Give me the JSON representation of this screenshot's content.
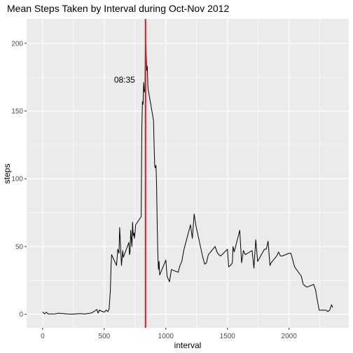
{
  "chart_data": {
    "type": "line",
    "title": "Mean Steps Taken by Interval during Oct-Nov 2012",
    "xlabel": "interval",
    "ylabel": "steps",
    "xlim": [
      -130,
      2485
    ],
    "ylim": [
      -10,
      218
    ],
    "xticks": [
      0,
      500,
      1000,
      1500,
      2000
    ],
    "yticks": [
      0,
      50,
      100,
      150,
      200
    ],
    "xtick_labels": [
      "0",
      "500",
      "1000",
      "1500",
      "2000"
    ],
    "ytick_labels": [
      "0",
      "50",
      "100",
      "150",
      "200"
    ],
    "grid": true,
    "legend": "none",
    "vline": {
      "x": 835,
      "color": "#e31a1c"
    },
    "annotation": {
      "text": "08:35",
      "x": 665,
      "y": 173
    },
    "series": [
      {
        "color": "#000000",
        "x": [
          0,
          15,
          30,
          45,
          100,
          130,
          200,
          240,
          300,
          340,
          400,
          440,
          450,
          460,
          500,
          515,
          530,
          540,
          550,
          555,
          560,
          580,
          600,
          610,
          620,
          625,
          630,
          640,
          650,
          655,
          700,
          705,
          710,
          715,
          720,
          725,
          730,
          735,
          740,
          745,
          750,
          755,
          800,
          805,
          810,
          815,
          820,
          825,
          830,
          835,
          840,
          845,
          850,
          855,
          900,
          905,
          910,
          915,
          920,
          925,
          930,
          935,
          940,
          945,
          950,
          1000,
          1010,
          1030,
          1045,
          1100,
          1115,
          1130,
          1145,
          1200,
          1215,
          1230,
          1245,
          1300,
          1315,
          1330,
          1345,
          1400,
          1415,
          1430,
          1445,
          1500,
          1510,
          1525,
          1540,
          1545,
          1555,
          1600,
          1615,
          1630,
          1645,
          1700,
          1715,
          1730,
          1745,
          1800,
          1815,
          1830,
          1845,
          1855,
          1900,
          1915,
          1930,
          1945,
          2000,
          2015,
          2030,
          2045,
          2100,
          2115,
          2130,
          2145,
          2200,
          2215,
          2230,
          2245,
          2300,
          2315,
          2330,
          2345,
          2355
        ],
        "values": [
          1.7,
          0.3,
          1.5,
          0.2,
          0.3,
          0.8,
          0.2,
          0.1,
          0.5,
          0.2,
          1.0,
          3.5,
          0.8,
          3.0,
          1.5,
          3.0,
          2.0,
          4.0,
          18,
          35,
          44,
          40,
          36,
          48,
          45,
          64,
          55,
          36,
          47,
          42,
          53,
          44,
          46,
          62,
          56,
          50,
          68,
          58,
          60,
          56,
          60,
          66,
          72,
          136,
          157,
          155,
          171,
          164,
          166,
          206,
          192,
          180,
          183,
          167,
          143,
          124,
          109,
          108,
          110,
          95,
          66,
          45,
          33,
          39,
          29,
          40,
          28,
          24,
          33,
          31,
          36,
          39,
          47,
          66,
          56,
          74,
          65,
          42,
          37,
          38,
          44,
          50,
          46,
          44,
          43,
          48,
          35,
          36,
          38,
          50,
          46,
          62,
          38,
          47,
          44,
          47,
          34,
          55,
          39,
          48,
          48,
          54,
          36,
          38,
          43,
          46,
          43,
          43,
          45,
          45,
          40,
          35,
          28,
          22,
          21,
          20,
          22,
          18,
          10,
          3,
          3,
          2,
          3,
          7,
          5
        ]
      }
    ]
  }
}
